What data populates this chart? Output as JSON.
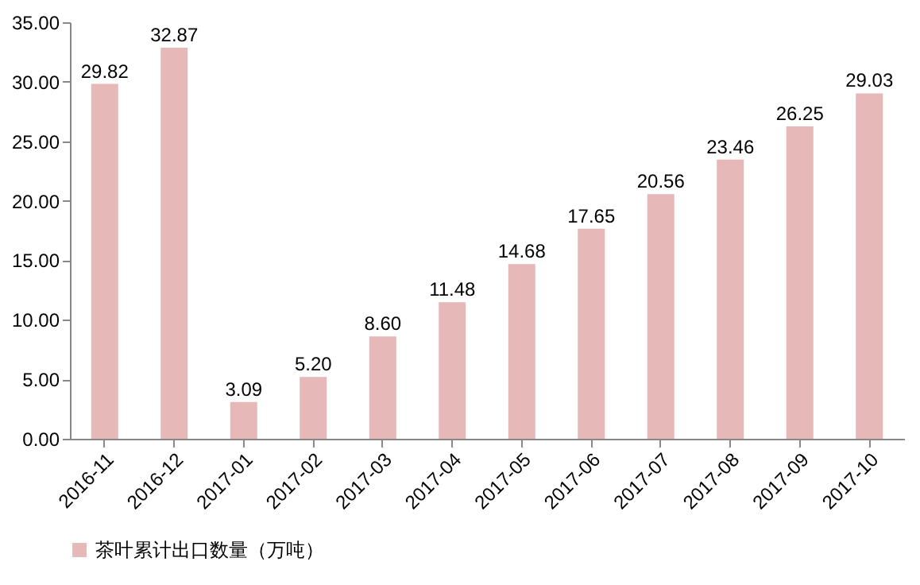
{
  "chart_data": {
    "type": "bar",
    "categories": [
      "2016-11",
      "2016-12",
      "2017-01",
      "2017-02",
      "2017-03",
      "2017-04",
      "2017-05",
      "2017-06",
      "2017-07",
      "2017-08",
      "2017-09",
      "2017-10"
    ],
    "series": [
      {
        "name": "茶叶累计出口数量（万吨）",
        "color": "#e6b9b8",
        "values": [
          29.82,
          32.87,
          3.09,
          5.2,
          8.6,
          11.48,
          14.68,
          17.65,
          20.56,
          23.46,
          26.25,
          29.03
        ],
        "value_labels": [
          "29.82",
          "32.87",
          "3.09",
          "5.20",
          "8.60",
          "11.48",
          "14.68",
          "17.65",
          "20.56",
          "23.46",
          "26.25",
          "29.03"
        ]
      }
    ],
    "ylim": [
      0,
      35
    ],
    "yticks": [
      {
        "value": 0,
        "label": "0.00"
      },
      {
        "value": 5,
        "label": "5.00"
      },
      {
        "value": 10,
        "label": "10.00"
      },
      {
        "value": 15,
        "label": "15.00"
      },
      {
        "value": 20,
        "label": "20.00"
      },
      {
        "value": 25,
        "label": "25.00"
      },
      {
        "value": 30,
        "label": "30.00"
      },
      {
        "value": 35,
        "label": "35.00"
      }
    ],
    "grid": false,
    "legend": "bottom"
  }
}
